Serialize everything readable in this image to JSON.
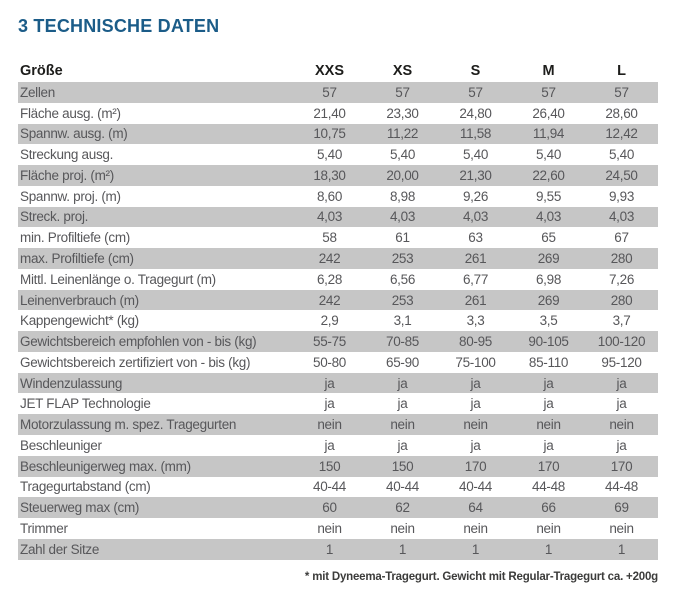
{
  "page": {
    "title": "3 TECHNISCHE DATEN",
    "footnote": "* mit Dyneema-Tragegurt. Gewicht mit Regular-Tragegurt ca. +200g"
  },
  "colors": {
    "title_blue": "#1b5c88",
    "row_shade_gray": "#c6c6c6",
    "body_text_gray": "#57575a",
    "header_text_black": "#1d1d1b",
    "footnote_text": "#3c3c3b",
    "background": "#ffffff"
  },
  "table": {
    "header": {
      "label": "Größe",
      "sizes": [
        "XXS",
        "XS",
        "S",
        "M",
        "L"
      ]
    },
    "rows": [
      {
        "label": "Zellen",
        "values": [
          "57",
          "57",
          "57",
          "57",
          "57"
        ]
      },
      {
        "label": "Fläche ausg. (m²)",
        "values": [
          "21,40",
          "23,30",
          "24,80",
          "26,40",
          "28,60"
        ]
      },
      {
        "label": "Spannw. ausg. (m)",
        "values": [
          "10,75",
          "11,22",
          "11,58",
          "11,94",
          "12,42"
        ]
      },
      {
        "label": "Streckung ausg.",
        "values": [
          "5,40",
          "5,40",
          "5,40",
          "5,40",
          "5,40"
        ]
      },
      {
        "label": "Fläche proj. (m²)",
        "values": [
          "18,30",
          "20,00",
          "21,30",
          "22,60",
          "24,50"
        ]
      },
      {
        "label": "Spannw. proj. (m)",
        "values": [
          "8,60",
          "8,98",
          "9,26",
          "9,55",
          "9,93"
        ]
      },
      {
        "label": "Streck. proj.",
        "values": [
          "4,03",
          "4,03",
          "4,03",
          "4,03",
          "4,03"
        ]
      },
      {
        "label": "min. Profiltiefe (cm)",
        "values": [
          "58",
          "61",
          "63",
          "65",
          "67"
        ]
      },
      {
        "label": "max. Profiltiefe (cm)",
        "values": [
          "242",
          "253",
          "261",
          "269",
          "280"
        ]
      },
      {
        "label": "Mittl. Leinenlänge o. Tragegurt (m)",
        "values": [
          "6,28",
          "6,56",
          "6,77",
          "6,98",
          "7,26"
        ]
      },
      {
        "label": "Leinenverbrauch (m)",
        "values": [
          "242",
          "253",
          "261",
          "269",
          "280"
        ]
      },
      {
        "label": "Kappengewicht* (kg)",
        "values": [
          "2,9",
          "3,1",
          "3,3",
          "3,5",
          "3,7"
        ]
      },
      {
        "label": "Gewichtsbereich empfohlen von - bis (kg)",
        "values": [
          "55-75",
          "70-85",
          "80-95",
          "90-105",
          "100-120"
        ]
      },
      {
        "label": "Gewichtsbereich zertifiziert von - bis (kg)",
        "values": [
          "50-80",
          "65-90",
          "75-100",
          "85-110",
          "95-120"
        ]
      },
      {
        "label": "Windenzulassung",
        "values": [
          "ja",
          "ja",
          "ja",
          "ja",
          "ja"
        ]
      },
      {
        "label": "JET FLAP Technologie",
        "values": [
          "ja",
          "ja",
          "ja",
          "ja",
          "ja"
        ]
      },
      {
        "label": "Motorzulassung m. spez. Tragegurten",
        "values": [
          "nein",
          "nein",
          "nein",
          "nein",
          "nein"
        ]
      },
      {
        "label": "Beschleuniger",
        "values": [
          "ja",
          "ja",
          "ja",
          "ja",
          "ja"
        ]
      },
      {
        "label": "Beschleunigerweg max. (mm)",
        "values": [
          "150",
          "150",
          "170",
          "170",
          "170"
        ]
      },
      {
        "label": "Tragegurtabstand (cm)",
        "values": [
          "40-44",
          "40-44",
          "40-44",
          "44-48",
          "44-48"
        ]
      },
      {
        "label": "Steuerweg max (cm)",
        "values": [
          "60",
          "62",
          "64",
          "66",
          "69"
        ]
      },
      {
        "label": "Trimmer",
        "values": [
          "nein",
          "nein",
          "nein",
          "nein",
          "nein"
        ]
      },
      {
        "label": "Zahl der Sitze",
        "values": [
          "1",
          "1",
          "1",
          "1",
          "1"
        ]
      }
    ]
  }
}
